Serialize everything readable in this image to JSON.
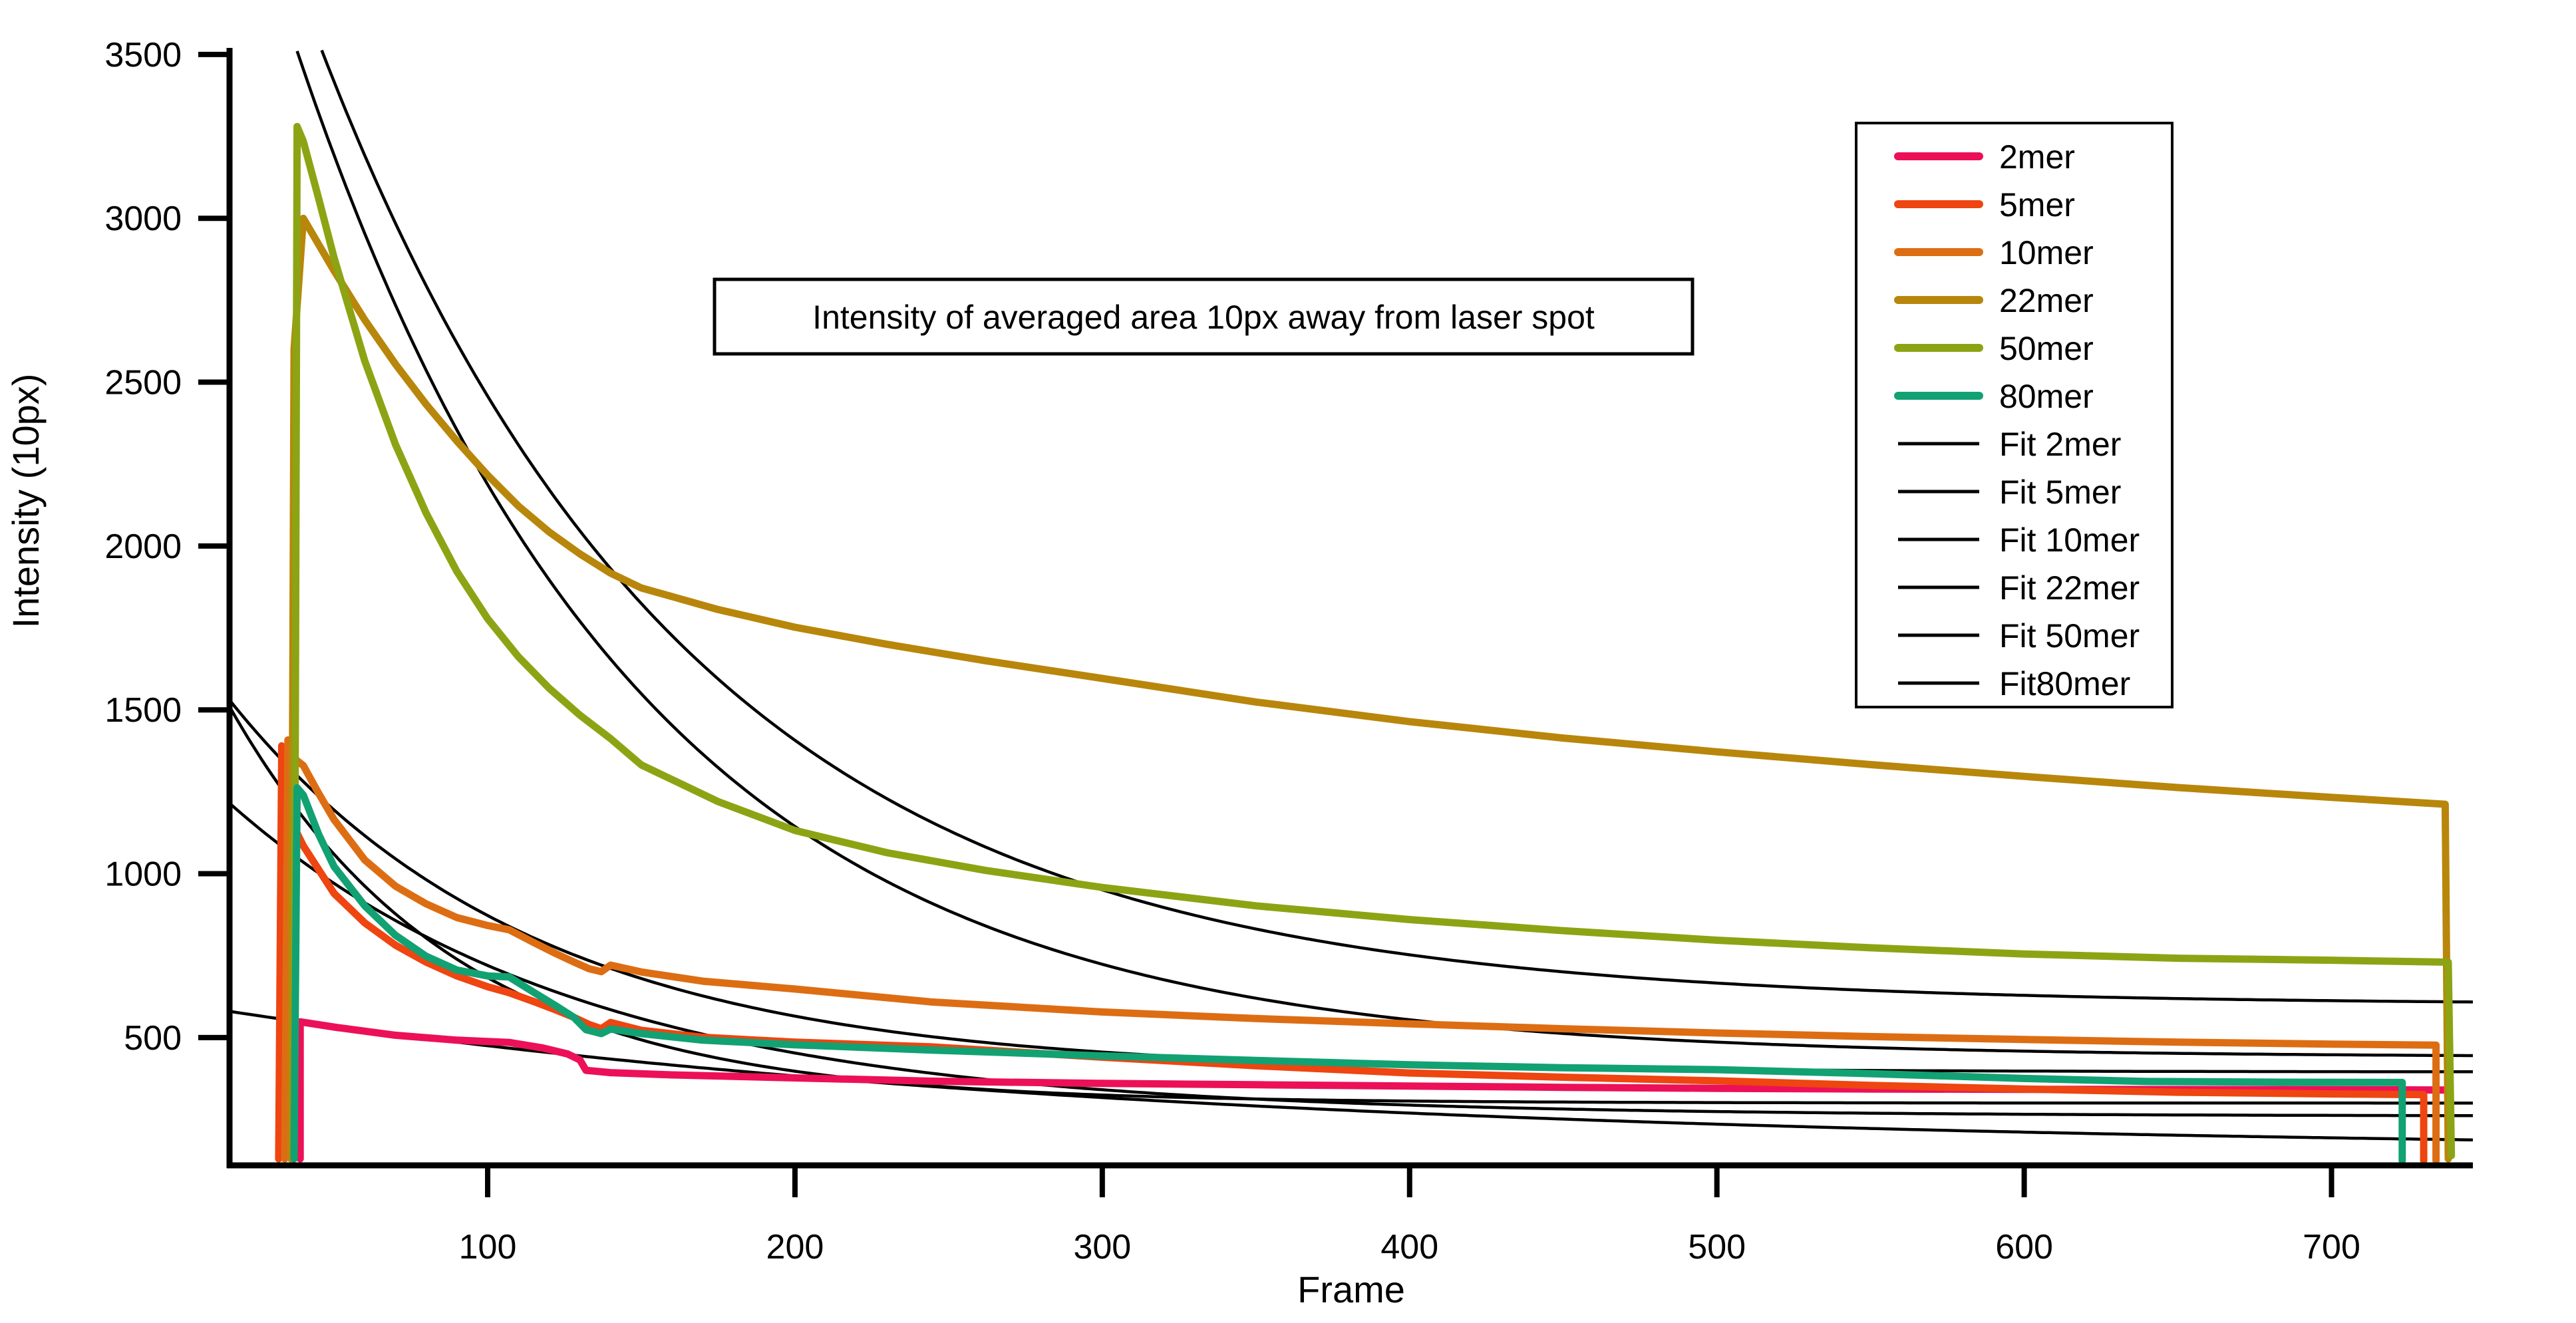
{
  "figure": {
    "background": "#ffffff",
    "annotation_box_title": "Intensity of averaged area 10px away from laser spot"
  },
  "chart_data": {
    "type": "line",
    "title": "Intensity of averaged area 10px away from laser spot",
    "xlabel": "Frame",
    "ylabel": "Intensity (10px)",
    "xlim": [
      16,
      746
    ],
    "ylim": [
      110,
      3520
    ],
    "x_ticks": [
      100,
      200,
      300,
      400,
      500,
      600,
      700
    ],
    "y_ticks": [
      500,
      1000,
      1500,
      2000,
      2500,
      3000,
      3500
    ],
    "grid": false,
    "legend_position": "upper right",
    "axis_color": "#000000",
    "series": [
      {
        "name": "2mer",
        "color": "#EC1058",
        "width": 11,
        "points": [
          [
            39,
            130
          ],
          [
            39,
            548
          ],
          [
            50,
            532
          ],
          [
            70,
            507
          ],
          [
            90,
            492
          ],
          [
            107,
            485
          ],
          [
            118,
            468
          ],
          [
            126,
            450
          ],
          [
            130,
            432
          ],
          [
            132,
            400
          ],
          [
            140,
            393
          ],
          [
            160,
            386
          ],
          [
            200,
            377
          ],
          [
            244,
            367
          ],
          [
            300,
            360
          ],
          [
            350,
            356
          ],
          [
            400,
            352
          ],
          [
            450,
            348
          ],
          [
            500,
            345
          ],
          [
            550,
            343
          ],
          [
            600,
            342
          ],
          [
            700,
            341
          ],
          [
            737,
            340
          ]
        ]
      },
      {
        "name": "5mer",
        "color": "#EE4511",
        "width": 11,
        "points": [
          [
            32,
            130
          ],
          [
            33,
            1390
          ],
          [
            35,
            1180
          ],
          [
            40,
            1085
          ],
          [
            50,
            940
          ],
          [
            60,
            850
          ],
          [
            70,
            782
          ],
          [
            80,
            730
          ],
          [
            90,
            688
          ],
          [
            100,
            655
          ],
          [
            107,
            637
          ],
          [
            115,
            610
          ],
          [
            122,
            585
          ],
          [
            128,
            562
          ],
          [
            133,
            540
          ],
          [
            137,
            527
          ],
          [
            140,
            546
          ],
          [
            150,
            522
          ],
          [
            170,
            501
          ],
          [
            200,
            486
          ],
          [
            244,
            472
          ],
          [
            300,
            440
          ],
          [
            350,
            414
          ],
          [
            400,
            392
          ],
          [
            450,
            379
          ],
          [
            500,
            368
          ],
          [
            550,
            354
          ],
          [
            600,
            343
          ],
          [
            650,
            333
          ],
          [
            700,
            328
          ],
          [
            730,
            326
          ],
          [
            730,
            125
          ]
        ]
      },
      {
        "name": "10mer",
        "color": "#DD6D13",
        "width": 11,
        "points": [
          [
            34,
            130
          ],
          [
            35,
            1408
          ],
          [
            37,
            1352
          ],
          [
            40,
            1330
          ],
          [
            45,
            1245
          ],
          [
            50,
            1165
          ],
          [
            60,
            1042
          ],
          [
            70,
            962
          ],
          [
            80,
            908
          ],
          [
            90,
            866
          ],
          [
            100,
            842
          ],
          [
            107,
            829
          ],
          [
            115,
            790
          ],
          [
            122,
            757
          ],
          [
            128,
            731
          ],
          [
            133,
            710
          ],
          [
            137,
            701
          ],
          [
            140,
            721
          ],
          [
            150,
            700
          ],
          [
            170,
            672
          ],
          [
            200,
            648
          ],
          [
            244,
            609
          ],
          [
            300,
            578
          ],
          [
            350,
            558
          ],
          [
            400,
            542
          ],
          [
            450,
            527
          ],
          [
            500,
            514
          ],
          [
            550,
            503
          ],
          [
            600,
            494
          ],
          [
            650,
            486
          ],
          [
            700,
            480
          ],
          [
            734,
            477
          ],
          [
            734,
            125
          ]
        ]
      },
      {
        "name": "22mer",
        "color": "#B8860B",
        "width": 11,
        "points": [
          [
            36,
            130
          ],
          [
            37,
            2600
          ],
          [
            40,
            3000
          ],
          [
            45,
            2920
          ],
          [
            50,
            2840
          ],
          [
            60,
            2690
          ],
          [
            70,
            2555
          ],
          [
            80,
            2432
          ],
          [
            90,
            2320
          ],
          [
            100,
            2216
          ],
          [
            110,
            2122
          ],
          [
            120,
            2043
          ],
          [
            130,
            1976
          ],
          [
            140,
            1917
          ],
          [
            150,
            1872
          ],
          [
            175,
            1806
          ],
          [
            200,
            1752
          ],
          [
            230,
            1700
          ],
          [
            262,
            1650
          ],
          [
            300,
            1596
          ],
          [
            350,
            1524
          ],
          [
            400,
            1464
          ],
          [
            450,
            1414
          ],
          [
            500,
            1372
          ],
          [
            550,
            1333
          ],
          [
            600,
            1297
          ],
          [
            650,
            1263
          ],
          [
            700,
            1233
          ],
          [
            737,
            1212
          ],
          [
            738,
            130
          ]
        ]
      },
      {
        "name": "50mer",
        "color": "#8CA414",
        "width": 11,
        "points": [
          [
            37,
            130
          ],
          [
            38,
            3280
          ],
          [
            40,
            3235
          ],
          [
            45,
            3060
          ],
          [
            50,
            2880
          ],
          [
            60,
            2565
          ],
          [
            70,
            2310
          ],
          [
            80,
            2100
          ],
          [
            90,
            1922
          ],
          [
            100,
            1778
          ],
          [
            110,
            1662
          ],
          [
            120,
            1566
          ],
          [
            130,
            1484
          ],
          [
            140,
            1412
          ],
          [
            150,
            1332
          ],
          [
            175,
            1220
          ],
          [
            200,
            1132
          ],
          [
            230,
            1064
          ],
          [
            262,
            1010
          ],
          [
            300,
            958
          ],
          [
            350,
            902
          ],
          [
            400,
            860
          ],
          [
            450,
            826
          ],
          [
            500,
            797
          ],
          [
            550,
            774
          ],
          [
            600,
            755
          ],
          [
            650,
            742
          ],
          [
            700,
            736
          ],
          [
            738,
            730
          ],
          [
            739,
            140
          ]
        ]
      },
      {
        "name": "80mer",
        "color": "#12A173",
        "width": 11,
        "points": [
          [
            37,
            130
          ],
          [
            38,
            1262
          ],
          [
            40,
            1240
          ],
          [
            45,
            1120
          ],
          [
            50,
            1022
          ],
          [
            60,
            902
          ],
          [
            70,
            812
          ],
          [
            80,
            748
          ],
          [
            90,
            706
          ],
          [
            100,
            688
          ],
          [
            107,
            685
          ],
          [
            115,
            638
          ],
          [
            122,
            598
          ],
          [
            128,
            562
          ],
          [
            132,
            524
          ],
          [
            137,
            512
          ],
          [
            140,
            526
          ],
          [
            150,
            512
          ],
          [
            170,
            492
          ],
          [
            200,
            478
          ],
          [
            244,
            462
          ],
          [
            300,
            444
          ],
          [
            350,
            430
          ],
          [
            400,
            417
          ],
          [
            450,
            408
          ],
          [
            500,
            402
          ],
          [
            550,
            390
          ],
          [
            600,
            375
          ],
          [
            640,
            366
          ],
          [
            680,
            364
          ],
          [
            723,
            363
          ],
          [
            723,
            125
          ]
        ]
      }
    ],
    "fits": [
      {
        "name": "Fit 2mer",
        "color": "#000000",
        "width": 4.5,
        "model": "y = yinf + A*exp(-(t-t0)/tau)",
        "t0": 16,
        "yinf": 150,
        "A": 430,
        "tau": 300,
        "t_end": 746
      },
      {
        "name": "Fit 5mer",
        "color": "#000000",
        "width": 4.5,
        "model": "y = yinf + A*exp(-(t-t0)/tau)",
        "t0": 16,
        "yinf": 300,
        "A": 1210,
        "tau": 73,
        "t_end": 746
      },
      {
        "name": "Fit 10mer",
        "color": "#000000",
        "width": 4.5,
        "model": "y = yinf + A*exp(-(t-t0)/tau)",
        "t0": 16,
        "yinf": 395,
        "A": 1135,
        "tau": 97,
        "t_end": 746
      },
      {
        "name": "Fit 22mer",
        "color": "#000000",
        "width": 4.5,
        "model": "y = yinf + A*exp(-(t-t0)/tau)",
        "t0": 16,
        "yinf": 600,
        "A": 3740,
        "tau": 120,
        "t_end": 746
      },
      {
        "name": "Fit 50mer",
        "color": "#000000",
        "width": 4.5,
        "model": "y = yinf + A*exp(-(t-t0)/tau)",
        "t0": 16,
        "yinf": 440,
        "A": 3750,
        "tau": 110,
        "t_end": 746
      },
      {
        "name": "Fit80mer",
        "color": "#000000",
        "width": 4.5,
        "model": "y = yinf + A*exp(-(t-t0)/tau)",
        "t0": 16,
        "yinf": 260,
        "A": 955,
        "tau": 115,
        "t_end": 746
      }
    ],
    "legend_entries": [
      "2mer",
      "5mer",
      "10mer",
      "22mer",
      "50mer",
      "80mer",
      "Fit 2mer",
      "Fit 5mer",
      "Fit 10mer",
      "Fit 22mer",
      "Fit 50mer",
      "Fit80mer"
    ]
  }
}
